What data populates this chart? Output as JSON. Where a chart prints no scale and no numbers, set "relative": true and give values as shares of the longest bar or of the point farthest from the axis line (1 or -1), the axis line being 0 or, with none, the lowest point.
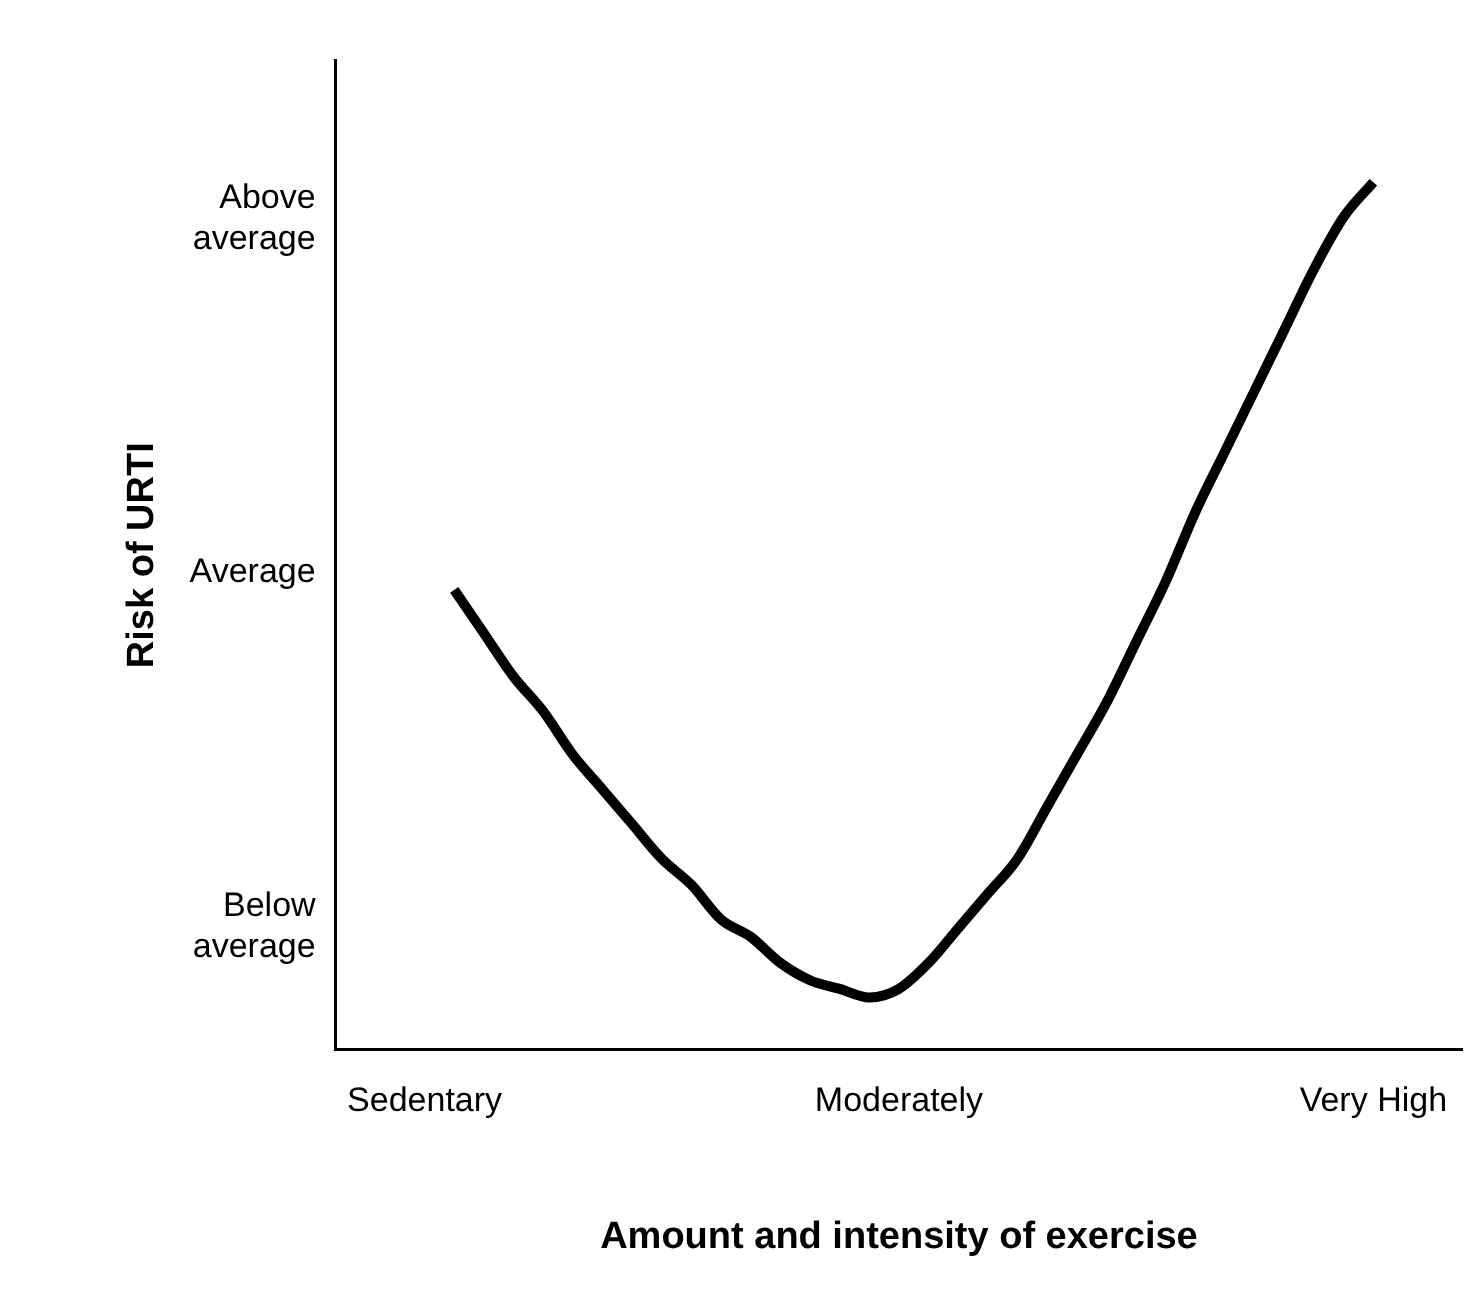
{
  "chart_data": {
    "type": "line",
    "xlabel": "Amount and intensity of exercise",
    "ylabel": "Risk of URTI",
    "relative": true,
    "categories": [
      "Sedentary",
      null,
      null,
      null,
      null,
      null,
      null,
      null,
      null,
      null,
      null,
      null,
      null,
      null,
      null,
      null,
      "Moderately",
      null,
      null,
      null,
      null,
      null,
      null,
      null,
      null,
      null,
      null,
      null,
      null,
      null,
      null,
      null,
      "Very High"
    ],
    "series": [
      {
        "color": "#000000",
        "values": [
          null,
          0.53,
          0.48,
          0.43,
          0.39,
          0.34,
          0.3,
          0.26,
          0.22,
          0.19,
          0.15,
          0.13,
          0.1,
          0.08,
          0.07,
          0.06,
          0.07,
          0.1,
          0.14,
          0.18,
          0.22,
          0.28,
          0.34,
          0.4,
          0.47,
          0.54,
          0.62,
          0.69,
          0.76,
          0.83,
          0.9,
          0.96,
          1.0
        ]
      }
    ],
    "annotations": [
      "Above average",
      "Average",
      "Below average"
    ],
    "grid": false,
    "legend": false,
    "marker": "none",
    "line_style": "solid"
  }
}
